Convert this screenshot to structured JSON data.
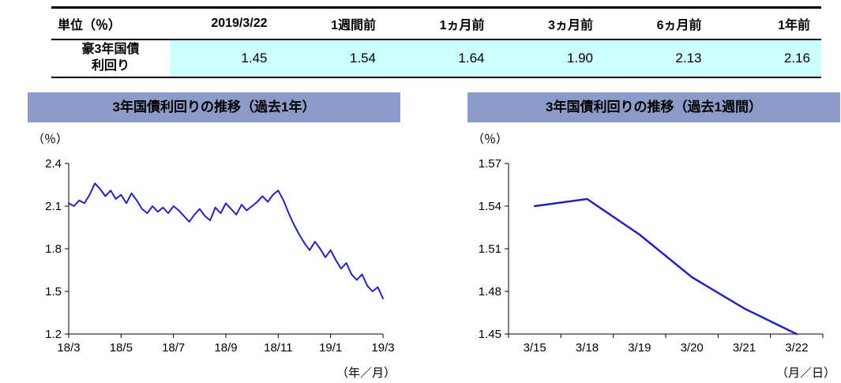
{
  "colors": {
    "panel_header_bg": "#8c9bc8",
    "highlight_row_bg": "#ccffff",
    "line": "#2323bf"
  },
  "table": {
    "headers": [
      "単位（％）",
      "2019/3/22",
      "1週間前",
      "1ヵ月前",
      "3ヵ月前",
      "6ヵ月前",
      "1年前"
    ],
    "rows": [
      {
        "label": "豪3年国債利回り",
        "label_lines": [
          "豪3年国債",
          "利回り"
        ],
        "values": [
          "1.45",
          "1.54",
          "1.64",
          "1.90",
          "2.13",
          "2.16"
        ]
      }
    ]
  },
  "chart_data": [
    {
      "type": "line",
      "title": "3年国債利回りの推移（過去1年）",
      "ylabel": "（％）",
      "xlabel": "（年／月）",
      "ylim": [
        1.2,
        2.4
      ],
      "yticks": [
        "1.2",
        "1.5",
        "1.8",
        "2.1",
        "2.4"
      ],
      "x": [
        "18/3",
        "18/5",
        "18/7",
        "18/9",
        "18/11",
        "19/1",
        "19/3"
      ],
      "x_style": "continuous",
      "grid": false,
      "legend": "none",
      "line_width": 2,
      "series": [
        {
          "name": "豪3年国債利回り",
          "values": [
            2.12,
            2.1,
            2.14,
            2.12,
            2.18,
            2.26,
            2.22,
            2.17,
            2.21,
            2.15,
            2.18,
            2.12,
            2.19,
            2.14,
            2.08,
            2.05,
            2.1,
            2.06,
            2.09,
            2.05,
            2.1,
            2.07,
            2.03,
            1.99,
            2.04,
            2.08,
            2.03,
            2.0,
            2.09,
            2.05,
            2.12,
            2.08,
            2.04,
            2.11,
            2.07,
            2.1,
            2.13,
            2.17,
            2.13,
            2.18,
            2.21,
            2.14,
            2.05,
            1.97,
            1.9,
            1.84,
            1.79,
            1.85,
            1.8,
            1.74,
            1.79,
            1.72,
            1.66,
            1.7,
            1.62,
            1.58,
            1.62,
            1.54,
            1.5,
            1.53,
            1.45
          ]
        }
      ]
    },
    {
      "type": "line",
      "title": "3年国債利回りの推移（過去1週間）",
      "ylabel": "（％）",
      "xlabel": "（月／日）",
      "ylim": [
        1.45,
        1.57
      ],
      "yticks": [
        "1.45",
        "1.48",
        "1.51",
        "1.54",
        "1.57"
      ],
      "x": [
        "3/15",
        "3/18",
        "3/19",
        "3/20",
        "3/21",
        "3/22"
      ],
      "x_style": "category",
      "grid": false,
      "legend": "none",
      "line_width": 2.5,
      "series": [
        {
          "name": "豪3年国債利回り",
          "values": [
            1.54,
            1.545,
            1.52,
            1.49,
            1.468,
            1.45
          ]
        }
      ]
    }
  ]
}
